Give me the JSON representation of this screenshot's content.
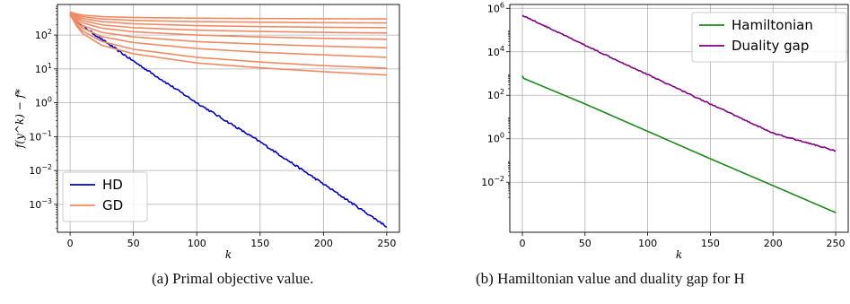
{
  "figure": {
    "captions": [
      "(a) Primal objective value.",
      "(b) Hamiltonian value and duality gap for H"
    ]
  },
  "chart_data": [
    {
      "type": "line",
      "yscale": "log",
      "xlabel": "k",
      "ylabel": "f(y^k) − f*",
      "xlim": [
        -10,
        260
      ],
      "ylim": [
        0.00015,
        800
      ],
      "xticks": [
        "0",
        "50",
        "100",
        "150",
        "200",
        "250"
      ],
      "yticks": [
        "10^2",
        "10^1",
        "10^0",
        "10^-1",
        "10^-2",
        "10^-3"
      ],
      "grid": true,
      "legend": {
        "position": "lower-left",
        "entries": [
          "HD",
          "GD"
        ]
      },
      "series": [
        {
          "name": "HD",
          "color": "#0000cc",
          "x": [
            0,
            2,
            5,
            10,
            20,
            50,
            100,
            150,
            200,
            250
          ],
          "y": [
            420,
            330,
            260,
            185,
            100,
            17,
            1.0,
            0.07,
            0.004,
            0.00022
          ]
        },
        {
          "name": "GD",
          "color": "#f08a63",
          "x": [
            0,
            5,
            10,
            25,
            50,
            100,
            150,
            200,
            250
          ],
          "y": [
            480,
            420,
            390,
            350,
            330,
            315,
            308,
            303,
            300
          ]
        },
        {
          "name": "GD",
          "color": "#f08a63",
          "x": [
            0,
            5,
            10,
            25,
            50,
            100,
            150,
            200,
            250
          ],
          "y": [
            470,
            390,
            350,
            300,
            270,
            250,
            240,
            232,
            228
          ]
        },
        {
          "name": "GD",
          "color": "#f08a63",
          "x": [
            0,
            5,
            10,
            25,
            50,
            100,
            150,
            200,
            250
          ],
          "y": [
            460,
            360,
            310,
            250,
            215,
            190,
            178,
            170,
            165
          ]
        },
        {
          "name": "GD",
          "color": "#f08a63",
          "x": [
            0,
            5,
            10,
            25,
            50,
            100,
            150,
            200,
            250
          ],
          "y": [
            450,
            330,
            270,
            200,
            165,
            140,
            128,
            120,
            115
          ]
        },
        {
          "name": "GD",
          "color": "#f08a63",
          "x": [
            0,
            5,
            10,
            25,
            50,
            100,
            150,
            200,
            250
          ],
          "y": [
            440,
            300,
            230,
            160,
            125,
            100,
            88,
            80,
            75
          ]
        },
        {
          "name": "GD",
          "color": "#f08a63",
          "x": [
            0,
            5,
            10,
            25,
            50,
            100,
            150,
            200,
            250
          ],
          "y": [
            430,
            270,
            190,
            120,
            88,
            64,
            54,
            47,
            42
          ]
        },
        {
          "name": "GD",
          "color": "#f08a63",
          "x": [
            0,
            5,
            10,
            25,
            50,
            100,
            150,
            200,
            250
          ],
          "y": [
            420,
            240,
            160,
            90,
            60,
            40,
            31,
            26,
            22
          ]
        },
        {
          "name": "GD",
          "color": "#f08a63",
          "x": [
            0,
            5,
            10,
            25,
            50,
            100,
            150,
            200,
            250
          ],
          "y": [
            410,
            210,
            130,
            65,
            38,
            22,
            16,
            12.5,
            10.5
          ]
        },
        {
          "name": "GD",
          "color": "#f08a63",
          "x": [
            0,
            5,
            10,
            25,
            50,
            100,
            150,
            200,
            250
          ],
          "y": [
            400,
            190,
            110,
            50,
            28,
            15,
            10.8,
            8.3,
            6.6
          ]
        }
      ]
    },
    {
      "type": "line",
      "yscale": "log",
      "xlabel": "k",
      "ylabel": "",
      "xlim": [
        -10,
        260
      ],
      "ylim": [
        5e-05,
        1500000
      ],
      "xticks": [
        "0",
        "50",
        "100",
        "150",
        "200",
        "250"
      ],
      "yticks": [
        "10^6",
        "10^4",
        "10^2",
        "10^0",
        "10^-2"
      ],
      "grid": true,
      "legend": {
        "position": "top-right",
        "entries": [
          "Hamiltonian",
          "Duality gap"
        ]
      },
      "series": [
        {
          "name": "Hamiltonian",
          "color": "#1a8c1a",
          "x": [
            0,
            1,
            50,
            100,
            150,
            200,
            250
          ],
          "y": [
            800,
            600,
            40,
            2.2,
            0.12,
            0.007,
            0.0004
          ]
        },
        {
          "name": "Duality gap",
          "color": "#800080",
          "x": [
            0,
            50,
            100,
            150,
            200,
            250
          ],
          "y": [
            480000,
            20000,
            900,
            40,
            1.8,
            0.28
          ]
        }
      ]
    }
  ]
}
